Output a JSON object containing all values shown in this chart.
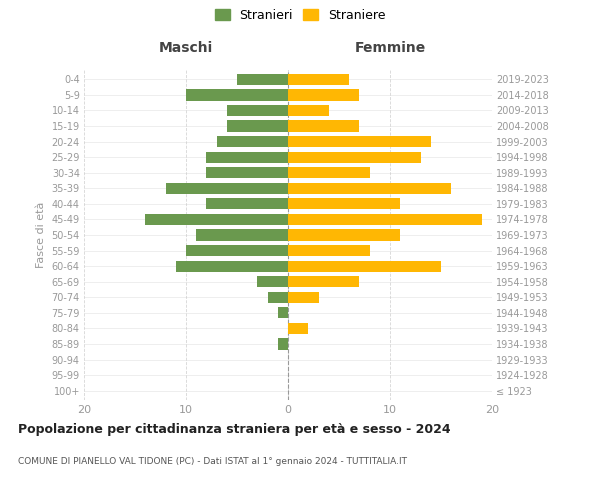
{
  "age_groups": [
    "100+",
    "95-99",
    "90-94",
    "85-89",
    "80-84",
    "75-79",
    "70-74",
    "65-69",
    "60-64",
    "55-59",
    "50-54",
    "45-49",
    "40-44",
    "35-39",
    "30-34",
    "25-29",
    "20-24",
    "15-19",
    "10-14",
    "5-9",
    "0-4"
  ],
  "birth_years": [
    "≤ 1923",
    "1924-1928",
    "1929-1933",
    "1934-1938",
    "1939-1943",
    "1944-1948",
    "1949-1953",
    "1954-1958",
    "1959-1963",
    "1964-1968",
    "1969-1973",
    "1974-1978",
    "1979-1983",
    "1984-1988",
    "1989-1993",
    "1994-1998",
    "1999-2003",
    "2004-2008",
    "2009-2013",
    "2014-2018",
    "2019-2023"
  ],
  "maschi": [
    0,
    0,
    0,
    1,
    0,
    1,
    2,
    3,
    11,
    10,
    9,
    14,
    8,
    12,
    8,
    8,
    7,
    6,
    6,
    10,
    5
  ],
  "femmine": [
    0,
    0,
    0,
    0,
    2,
    0,
    3,
    7,
    15,
    8,
    11,
    19,
    11,
    16,
    8,
    13,
    14,
    7,
    4,
    7,
    6
  ],
  "maschi_color": "#6a994e",
  "femmine_color": "#ffb703",
  "title": "Popolazione per cittadinanza straniera per età e sesso - 2024",
  "subtitle": "COMUNE DI PIANELLO VAL TIDONE (PC) - Dati ISTAT al 1° gennaio 2024 - TUTTITALIA.IT",
  "legend_maschi": "Stranieri",
  "legend_femmine": "Straniere",
  "header_left": "Maschi",
  "header_right": "Femmine",
  "ylabel_left": "Fasce di età",
  "xlim": 20,
  "background_color": "#ffffff",
  "grid_color": "#cccccc"
}
